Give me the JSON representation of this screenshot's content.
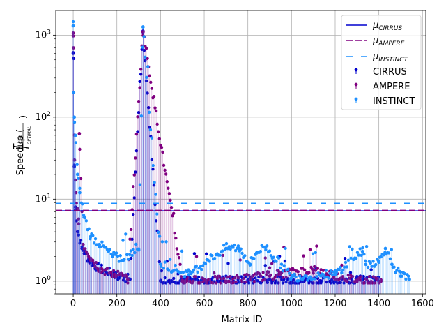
{
  "chart_data": {
    "type": "scatter",
    "xlabel": "Matrix ID",
    "ylabel_prefix": "Speedup (",
    "ylabel_num": "T",
    "ylabel_num_sub": "CSR",
    "ylabel_den": "T",
    "ylabel_den_sub": "OPTIMAL",
    "ylabel_suffix": ")",
    "xlim": [
      -80,
      1615
    ],
    "ylim": [
      0.7,
      2000
    ],
    "yscale": "log",
    "grid": true,
    "legend_position": "top-right",
    "x_ticks": [
      0,
      200,
      400,
      600,
      800,
      1000,
      1200,
      1400,
      1600
    ],
    "x_tick_labels": [
      "0",
      "200",
      "400",
      "600",
      "800",
      "1000",
      "1200",
      "1400",
      "1600"
    ],
    "y_ticks": [
      1,
      10,
      100,
      1000
    ],
    "y_tick_bases": [
      "10",
      "10",
      "10",
      "10"
    ],
    "y_tick_exps": [
      "0",
      "1",
      "2",
      "3"
    ],
    "mean_lines": [
      {
        "label_main": "μ",
        "label_sub": "CIRRUS",
        "value": 7.2,
        "color": "#0000cd",
        "dash": "solid"
      },
      {
        "label_main": "μ",
        "label_sub": "AMPERE",
        "value": 7.3,
        "color": "#800080",
        "dash": "dashed"
      },
      {
        "label_main": "μ",
        "label_sub": "INSTINCT",
        "value": 8.9,
        "color": "#1e90ff",
        "dash": "loose"
      }
    ],
    "series": [
      {
        "name": "CIRRUS",
        "color": "#0000cd",
        "n": 1420,
        "points": [
          [
            0,
            600
          ],
          [
            2,
            520
          ],
          [
            5,
            25
          ],
          [
            10,
            8
          ],
          [
            20,
            4
          ],
          [
            40,
            2.5
          ],
          [
            70,
            1.8
          ],
          [
            100,
            1.5
          ],
          [
            150,
            1.3
          ],
          [
            200,
            1.15
          ],
          [
            260,
            1.05
          ],
          [
            320,
            1120
          ],
          [
            400,
            1.0
          ],
          [
            600,
            1.0
          ],
          [
            800,
            1.0
          ],
          [
            1000,
            1.0
          ],
          [
            1200,
            1.0
          ],
          [
            1400,
            1.0
          ]
        ]
      },
      {
        "name": "AMPERE",
        "color": "#800080",
        "n": 1420,
        "points": [
          [
            0,
            980
          ],
          [
            1,
            700
          ],
          [
            6,
            30
          ],
          [
            12,
            12
          ],
          [
            25,
            5
          ],
          [
            28,
            63
          ],
          [
            45,
            2.8
          ],
          [
            80,
            1.9
          ],
          [
            120,
            1.4
          ],
          [
            180,
            1.2
          ],
          [
            250,
            1.05
          ],
          [
            320,
            1100
          ],
          [
            500,
            1.0
          ],
          [
            700,
            1.0
          ],
          [
            900,
            1.15
          ],
          [
            940,
            1.2
          ],
          [
            1100,
            1.35
          ],
          [
            1300,
            1.0
          ],
          [
            1410,
            1.0
          ]
        ]
      },
      {
        "name": "INSTINCT",
        "color": "#1e90ff",
        "n": 1540,
        "points": [
          [
            0,
            1300
          ],
          [
            2,
            200
          ],
          [
            5,
            100
          ],
          [
            10,
            60
          ],
          [
            20,
            20
          ],
          [
            30,
            12
          ],
          [
            50,
            6
          ],
          [
            80,
            3.5
          ],
          [
            120,
            2.8
          ],
          [
            180,
            2.0
          ],
          [
            230,
            1.8
          ],
          [
            300,
            2.4
          ],
          [
            320,
            1260
          ],
          [
            400,
            1.6
          ],
          [
            530,
            1.2
          ],
          [
            700,
            2.5
          ],
          [
            760,
            2.5
          ],
          [
            810,
            1.6
          ],
          [
            840,
            2.2
          ],
          [
            880,
            2.6
          ],
          [
            1000,
            1.1
          ],
          [
            1200,
            1.2
          ],
          [
            1325,
            2.3
          ],
          [
            1340,
            1.6
          ],
          [
            1400,
            1.7
          ],
          [
            1430,
            2.5
          ],
          [
            1460,
            1.6
          ],
          [
            1500,
            1.15
          ],
          [
            1540,
            1.05
          ]
        ]
      }
    ]
  }
}
